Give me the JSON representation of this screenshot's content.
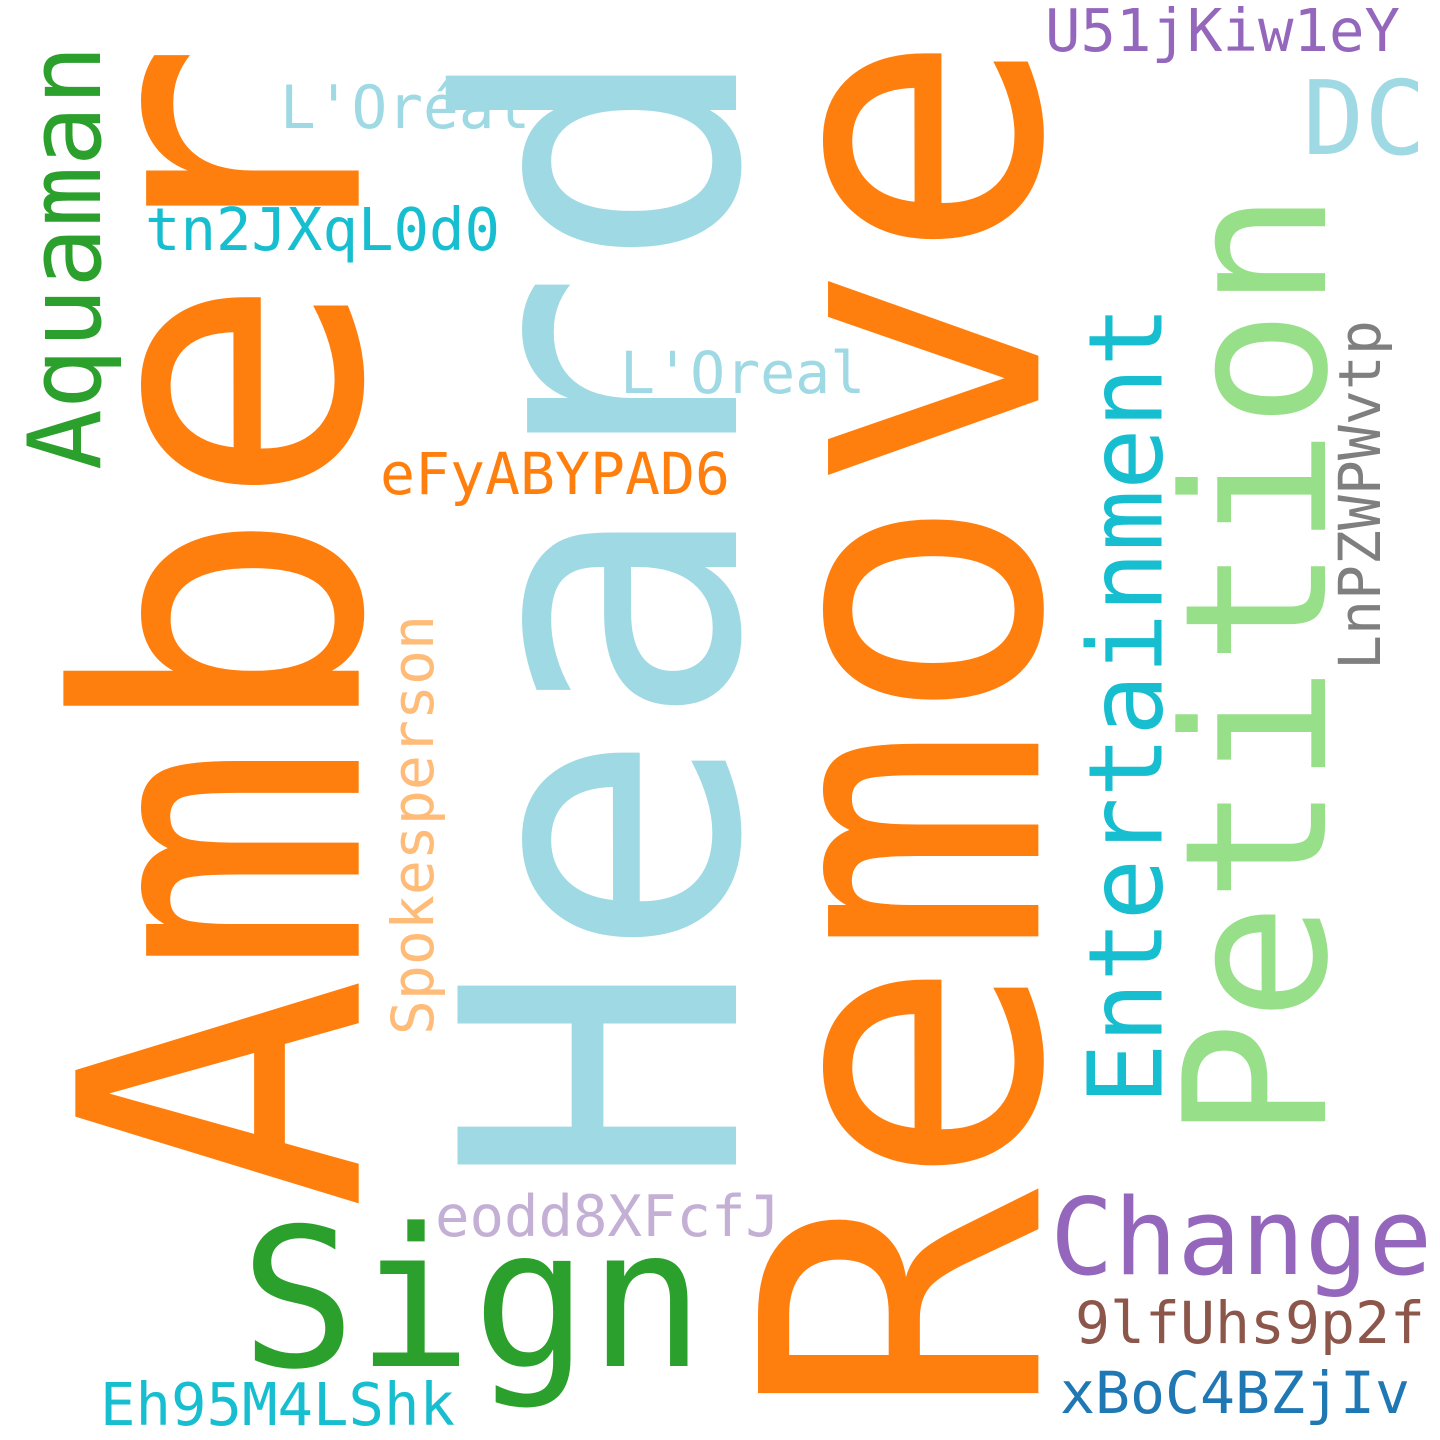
{
  "words": [
    {
      "id": "amber",
      "text": "Amber",
      "color": "#ff7f0e",
      "orientation": "vertical"
    },
    {
      "id": "heard",
      "text": "Heard",
      "color": "#9fd9e4",
      "orientation": "vertical"
    },
    {
      "id": "remove",
      "text": "Remove",
      "color": "#ff7f0e",
      "orientation": "vertical"
    },
    {
      "id": "petition",
      "text": "Petition",
      "color": "#98df8a",
      "orientation": "vertical"
    },
    {
      "id": "entertainment",
      "text": "Entertainment",
      "color": "#17becf",
      "orientation": "vertical"
    },
    {
      "id": "aquaman",
      "text": "Aquaman",
      "color": "#2ca02c",
      "orientation": "vertical"
    },
    {
      "id": "spokesperson",
      "text": "Spokesperson",
      "color": "#ffbb78",
      "orientation": "vertical"
    },
    {
      "id": "lnpzwpwvtp",
      "text": "LnPZWPWvtp",
      "color": "#7f7f7f",
      "orientation": "vertical"
    },
    {
      "id": "sign",
      "text": "Sign",
      "color": "#2ca02c",
      "orientation": "horizontal"
    },
    {
      "id": "change",
      "text": "Change",
      "color": "#9467bd",
      "orientation": "horizontal"
    },
    {
      "id": "dc",
      "text": "DC",
      "color": "#9fd9e4",
      "orientation": "horizontal"
    },
    {
      "id": "u51jkiw1ey",
      "text": "U51jKiw1eY",
      "color": "#9467bd",
      "orientation": "horizontal"
    },
    {
      "id": "loreal-accent",
      "text": "L'Oréal",
      "color": "#9fd9e4",
      "orientation": "horizontal"
    },
    {
      "id": "loreal",
      "text": "L'Oreal",
      "color": "#9fd9e4",
      "orientation": "horizontal"
    },
    {
      "id": "tn2jxql0d0",
      "text": "tn2JXqL0d0",
      "color": "#17becf",
      "orientation": "horizontal"
    },
    {
      "id": "efyabypad6",
      "text": "eFyABYPAD6",
      "color": "#ff7f0e",
      "orientation": "horizontal"
    },
    {
      "id": "eodd8xfcfj",
      "text": "eodd8XFcfJ",
      "color": "#c5b0d5",
      "orientation": "horizontal"
    },
    {
      "id": "9lfuhs9p2f",
      "text": "9lfUhs9p2f",
      "color": "#8c564b",
      "orientation": "horizontal"
    },
    {
      "id": "xboc4bzjiv",
      "text": "xBoC4BZjIv",
      "color": "#1f77b4",
      "orientation": "horizontal"
    },
    {
      "id": "eh95m4lshk",
      "text": "Eh95M4LShk",
      "color": "#17becf",
      "orientation": "horizontal"
    }
  ]
}
